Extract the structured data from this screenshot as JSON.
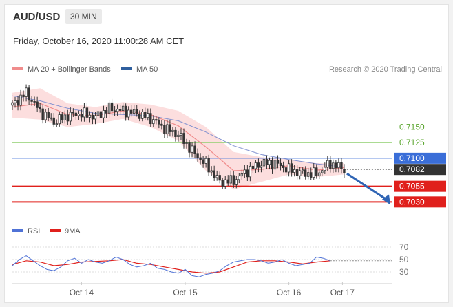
{
  "header": {
    "symbol": "AUD/USD",
    "timeframe": "30 MIN",
    "timestamp": "Friday, October 16, 2020 11:00:28 AM CET"
  },
  "legend": {
    "ma20_label": "MA 20 + Bollinger Bands",
    "ma50_label": "MA 50",
    "credit": "Research © 2020 Trading Central",
    "rsi_label": "RSI",
    "nine_ma_label": "9MA"
  },
  "colors": {
    "candle": "#333333",
    "ma20": "#f08c8c",
    "bollinger": "#fbd3d3",
    "ma50": "#8090d0",
    "green_level": "#8fcf6f",
    "blue_level": "#3a6ed8",
    "red_level": "#e0201c",
    "arrow": "#2f64b4",
    "rsi": "#4f72d6",
    "rsi_ma": "#e0201c"
  },
  "chart_data": [
    {
      "type": "candlestick",
      "title": "AUD/USD 30 MIN",
      "ylim": [
        0.7005,
        0.723
      ],
      "x_ticks": [
        "Oct 14",
        "Oct 15",
        "Oct 16",
        "Oct 17"
      ],
      "levels": [
        {
          "value": 0.715,
          "label": "0.7150",
          "color": "green"
        },
        {
          "value": 0.7125,
          "label": "0.7125",
          "color": "green"
        },
        {
          "value": 0.71,
          "label": "0.7100",
          "color": "blue"
        },
        {
          "value": 0.7082,
          "label": "0.7082",
          "color": "current"
        },
        {
          "value": 0.7055,
          "label": "0.7055",
          "color": "red"
        },
        {
          "value": 0.703,
          "label": "0.7030",
          "color": "red"
        }
      ],
      "close_path": [
        [
          0,
          0.7185
        ],
        [
          8,
          0.7205
        ],
        [
          16,
          0.7175
        ],
        [
          24,
          0.7158
        ],
        [
          32,
          0.7168
        ],
        [
          40,
          0.7172
        ],
        [
          48,
          0.7166
        ],
        [
          56,
          0.718
        ],
        [
          64,
          0.7176
        ],
        [
          72,
          0.7172
        ],
        [
          80,
          0.7164
        ],
        [
          88,
          0.7148
        ],
        [
          96,
          0.7138
        ],
        [
          104,
          0.7112
        ],
        [
          112,
          0.709
        ],
        [
          120,
          0.7062
        ],
        [
          128,
          0.7064
        ],
        [
          136,
          0.708
        ],
        [
          144,
          0.7092
        ],
        [
          152,
          0.7092
        ],
        [
          160,
          0.7082
        ],
        [
          168,
          0.7076
        ],
        [
          176,
          0.7075
        ],
        [
          184,
          0.7092
        ],
        [
          192,
          0.7082
        ]
      ],
      "ma20": [
        [
          0,
          0.7182
        ],
        [
          16,
          0.7188
        ],
        [
          32,
          0.717
        ],
        [
          48,
          0.7168
        ],
        [
          64,
          0.7176
        ],
        [
          80,
          0.717
        ],
        [
          96,
          0.7152
        ],
        [
          112,
          0.7118
        ],
        [
          128,
          0.708
        ],
        [
          144,
          0.7082
        ],
        [
          160,
          0.7088
        ],
        [
          176,
          0.7081
        ],
        [
          192,
          0.7085
        ]
      ],
      "bollinger_upper": [
        [
          0,
          0.7205
        ],
        [
          16,
          0.7212
        ],
        [
          32,
          0.7188
        ],
        [
          48,
          0.7182
        ],
        [
          64,
          0.719
        ],
        [
          80,
          0.7186
        ],
        [
          96,
          0.7176
        ],
        [
          112,
          0.715
        ],
        [
          128,
          0.711
        ],
        [
          144,
          0.7102
        ],
        [
          160,
          0.7098
        ],
        [
          176,
          0.7092
        ],
        [
          192,
          0.7092
        ]
      ],
      "bollinger_lower": [
        [
          0,
          0.7165
        ],
        [
          16,
          0.7162
        ],
        [
          32,
          0.715
        ],
        [
          48,
          0.7155
        ],
        [
          64,
          0.7163
        ],
        [
          80,
          0.715
        ],
        [
          96,
          0.7128
        ],
        [
          112,
          0.708
        ],
        [
          128,
          0.705
        ],
        [
          144,
          0.7062
        ],
        [
          160,
          0.7074
        ],
        [
          176,
          0.707
        ],
        [
          192,
          0.7074
        ]
      ],
      "ma50": [
        [
          0,
          0.72
        ],
        [
          16,
          0.7192
        ],
        [
          32,
          0.718
        ],
        [
          48,
          0.7172
        ],
        [
          64,
          0.717
        ],
        [
          80,
          0.7168
        ],
        [
          96,
          0.716
        ],
        [
          112,
          0.7142
        ],
        [
          128,
          0.712
        ],
        [
          144,
          0.7106
        ],
        [
          160,
          0.7098
        ],
        [
          176,
          0.7091
        ],
        [
          192,
          0.7086
        ]
      ],
      "forecast_arrow": {
        "from": [
          192,
          0.7082
        ],
        "to": [
          200,
          0.7032
        ]
      }
    },
    {
      "type": "line",
      "title": "RSI",
      "ylim": [
        20,
        80
      ],
      "y_ticks": [
        70,
        50,
        30
      ],
      "series": [
        {
          "name": "RSI",
          "values": [
            [
              0,
              40
            ],
            [
              4,
              50
            ],
            [
              8,
              56
            ],
            [
              12,
              48
            ],
            [
              16,
              40
            ],
            [
              20,
              34
            ],
            [
              24,
              32
            ],
            [
              28,
              38
            ],
            [
              32,
              48
            ],
            [
              36,
              52
            ],
            [
              40,
              44
            ],
            [
              44,
              50
            ],
            [
              48,
              46
            ],
            [
              52,
              44
            ],
            [
              56,
              48
            ],
            [
              60,
              54
            ],
            [
              64,
              50
            ],
            [
              68,
              42
            ],
            [
              72,
              38
            ],
            [
              76,
              40
            ],
            [
              80,
              44
            ],
            [
              84,
              36
            ],
            [
              88,
              34
            ],
            [
              92,
              30
            ],
            [
              96,
              28
            ],
            [
              100,
              34
            ],
            [
              104,
              24
            ],
            [
              108,
              22
            ],
            [
              112,
              26
            ],
            [
              116,
              28
            ],
            [
              120,
              32
            ],
            [
              124,
              40
            ],
            [
              128,
              46
            ],
            [
              132,
              48
            ],
            [
              136,
              50
            ],
            [
              140,
              50
            ],
            [
              144,
              48
            ],
            [
              148,
              44
            ],
            [
              152,
              46
            ],
            [
              156,
              50
            ],
            [
              160,
              44
            ],
            [
              164,
              40
            ],
            [
              168,
              42
            ],
            [
              172,
              44
            ],
            [
              176,
              54
            ],
            [
              180,
              52
            ],
            [
              184,
              48
            ]
          ]
        },
        {
          "name": "9MA",
          "values": [
            [
              0,
              42
            ],
            [
              8,
              48
            ],
            [
              16,
              46
            ],
            [
              24,
              40
            ],
            [
              32,
              42
            ],
            [
              40,
              46
            ],
            [
              48,
              47
            ],
            [
              56,
              48
            ],
            [
              64,
              50
            ],
            [
              72,
              44
            ],
            [
              80,
              42
            ],
            [
              88,
              38
            ],
            [
              96,
              34
            ],
            [
              104,
              30
            ],
            [
              112,
              28
            ],
            [
              120,
              30
            ],
            [
              128,
              38
            ],
            [
              136,
              46
            ],
            [
              144,
              48
            ],
            [
              152,
              48
            ],
            [
              160,
              46
            ],
            [
              168,
              43
            ],
            [
              176,
              46
            ],
            [
              184,
              48
            ]
          ]
        }
      ]
    }
  ]
}
